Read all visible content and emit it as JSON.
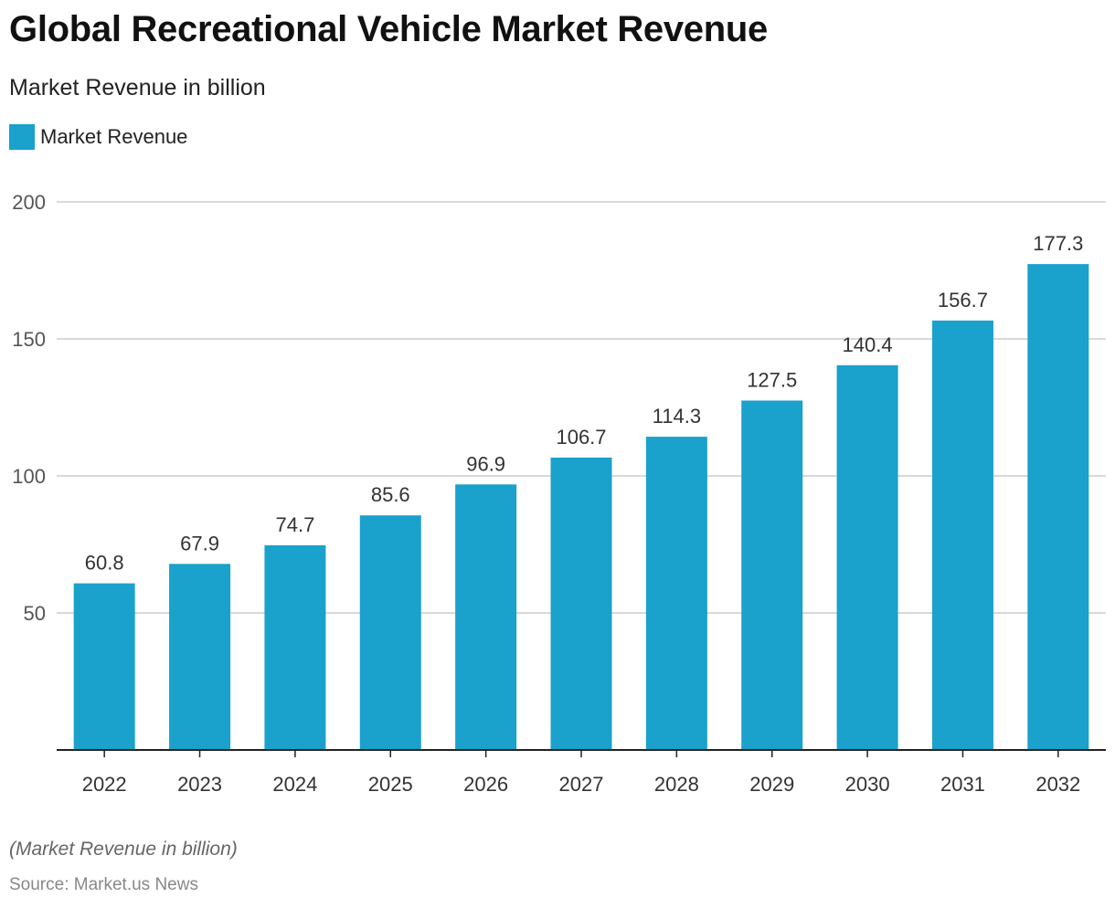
{
  "title": "Global Recreational Vehicle Market Revenue",
  "subtitle": "Market Revenue in billion",
  "legend": {
    "label": "Market Revenue"
  },
  "footnote": "(Market Revenue in billion)",
  "source": "Source: Market.us News",
  "colors": {
    "bar": "#1aa1cc",
    "grid": "#cccccc",
    "axis": "#222222",
    "tick_text": "#555555",
    "label_text": "#333333"
  },
  "chart_data": {
    "type": "bar",
    "categories": [
      "2022",
      "2023",
      "2024",
      "2025",
      "2026",
      "2027",
      "2028",
      "2029",
      "2030",
      "2031",
      "2032"
    ],
    "series": [
      {
        "name": "Market Revenue",
        "values": [
          60.8,
          67.9,
          74.7,
          85.6,
          96.9,
          106.7,
          114.3,
          127.5,
          140.4,
          156.7,
          177.3
        ]
      }
    ],
    "value_labels": [
      "60.8",
      "67.9",
      "74.7",
      "85.6",
      "96.9",
      "106.7",
      "114.3",
      "127.5",
      "140.4",
      "156.7",
      "177.3"
    ],
    "yticks": [
      50,
      100,
      150,
      200
    ],
    "ytick_labels": [
      "50",
      "100",
      "150",
      "200"
    ],
    "ylim": [
      0,
      200
    ],
    "grid": true,
    "legend_position": "top-left"
  }
}
